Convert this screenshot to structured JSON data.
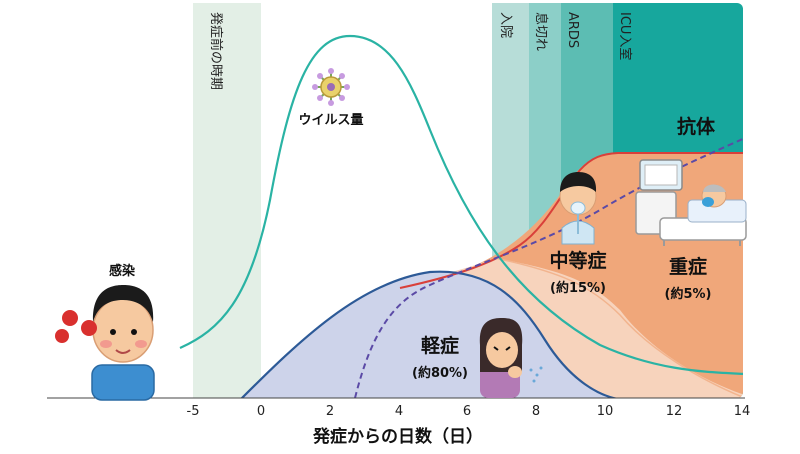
{
  "diagram": {
    "x_axis": {
      "title": "発症からの日数（日）",
      "ticks": [
        "-5",
        "0",
        "2",
        "4",
        "6",
        "8",
        "10",
        "12",
        "14"
      ]
    },
    "phases": {
      "presymptomatic": "発症前の時期",
      "hospitalization": "入院",
      "dyspnea": "息切れ",
      "ards": "ARDS",
      "icu": "ICU入室"
    },
    "labels": {
      "infection": "感染",
      "viral_load": "ウイルス量",
      "antibody": "抗体",
      "mild": "軽症",
      "mild_pct": "(約80%)",
      "moderate": "中等症",
      "moderate_pct": "(約15%)",
      "severe": "重症",
      "severe_pct": "(約5%)"
    },
    "colors": {
      "presymptomatic_band": "#e3efe6",
      "hospitalization_band": "#b7ddd8",
      "dyspnea_band": "#8ccfc8",
      "ards_band": "#5cbdb3",
      "icu_band": "#17a79d",
      "mild_area": "#cdd3ea",
      "moderate_area": "#f7d3bc",
      "severe_area": "#f0a77a",
      "viral_curve": "#2ab3a4",
      "mild_curve": "#2d5a97",
      "severe_curve": "#d9403a",
      "antibody_curve": "#5b4aa6"
    },
    "icons": {
      "virus": "virus-icon",
      "sick_boy": "infected-person-icon",
      "coughing_woman": "coughing-woman-icon",
      "oxygen_patient": "oxygen-mask-patient-icon",
      "icu_bed": "icu-bed-patient-icon"
    }
  }
}
